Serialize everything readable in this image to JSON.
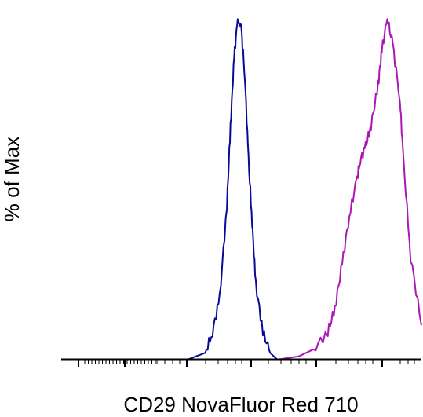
{
  "chart_data": {
    "type": "line",
    "title": "",
    "xlabel": "CD29 NovaFluor Red 710",
    "ylabel": "% of Max",
    "x_scale": "log (flow cytometry biexponential, unlabeled ticks)",
    "ylim": [
      0,
      100
    ],
    "grid": false,
    "legend": "none",
    "series": [
      {
        "color": "#0a0a96",
        "x": [
          0.3,
          0.35,
          0.4,
          0.42,
          0.44,
          0.46,
          0.47,
          0.48,
          0.49,
          0.5,
          0.51,
          0.52,
          0.53,
          0.54,
          0.56,
          0.58,
          0.6,
          0.65
        ],
        "y": [
          0,
          0,
          2,
          8,
          18,
          45,
          68,
          88,
          99,
          96,
          82,
          58,
          40,
          22,
          8,
          2,
          0,
          0
        ]
      },
      {
        "color": "#aa18b4",
        "x": [
          0.6,
          0.66,
          0.7,
          0.74,
          0.76,
          0.78,
          0.8,
          0.82,
          0.83,
          0.845,
          0.86,
          0.88,
          0.89,
          0.905,
          0.92,
          0.94,
          0.95,
          0.97,
          1.0
        ],
        "y": [
          0,
          1,
          3,
          8,
          15,
          28,
          42,
          52,
          58,
          62,
          68,
          80,
          90,
          99,
          92,
          76,
          58,
          30,
          10
        ]
      }
    ]
  }
}
